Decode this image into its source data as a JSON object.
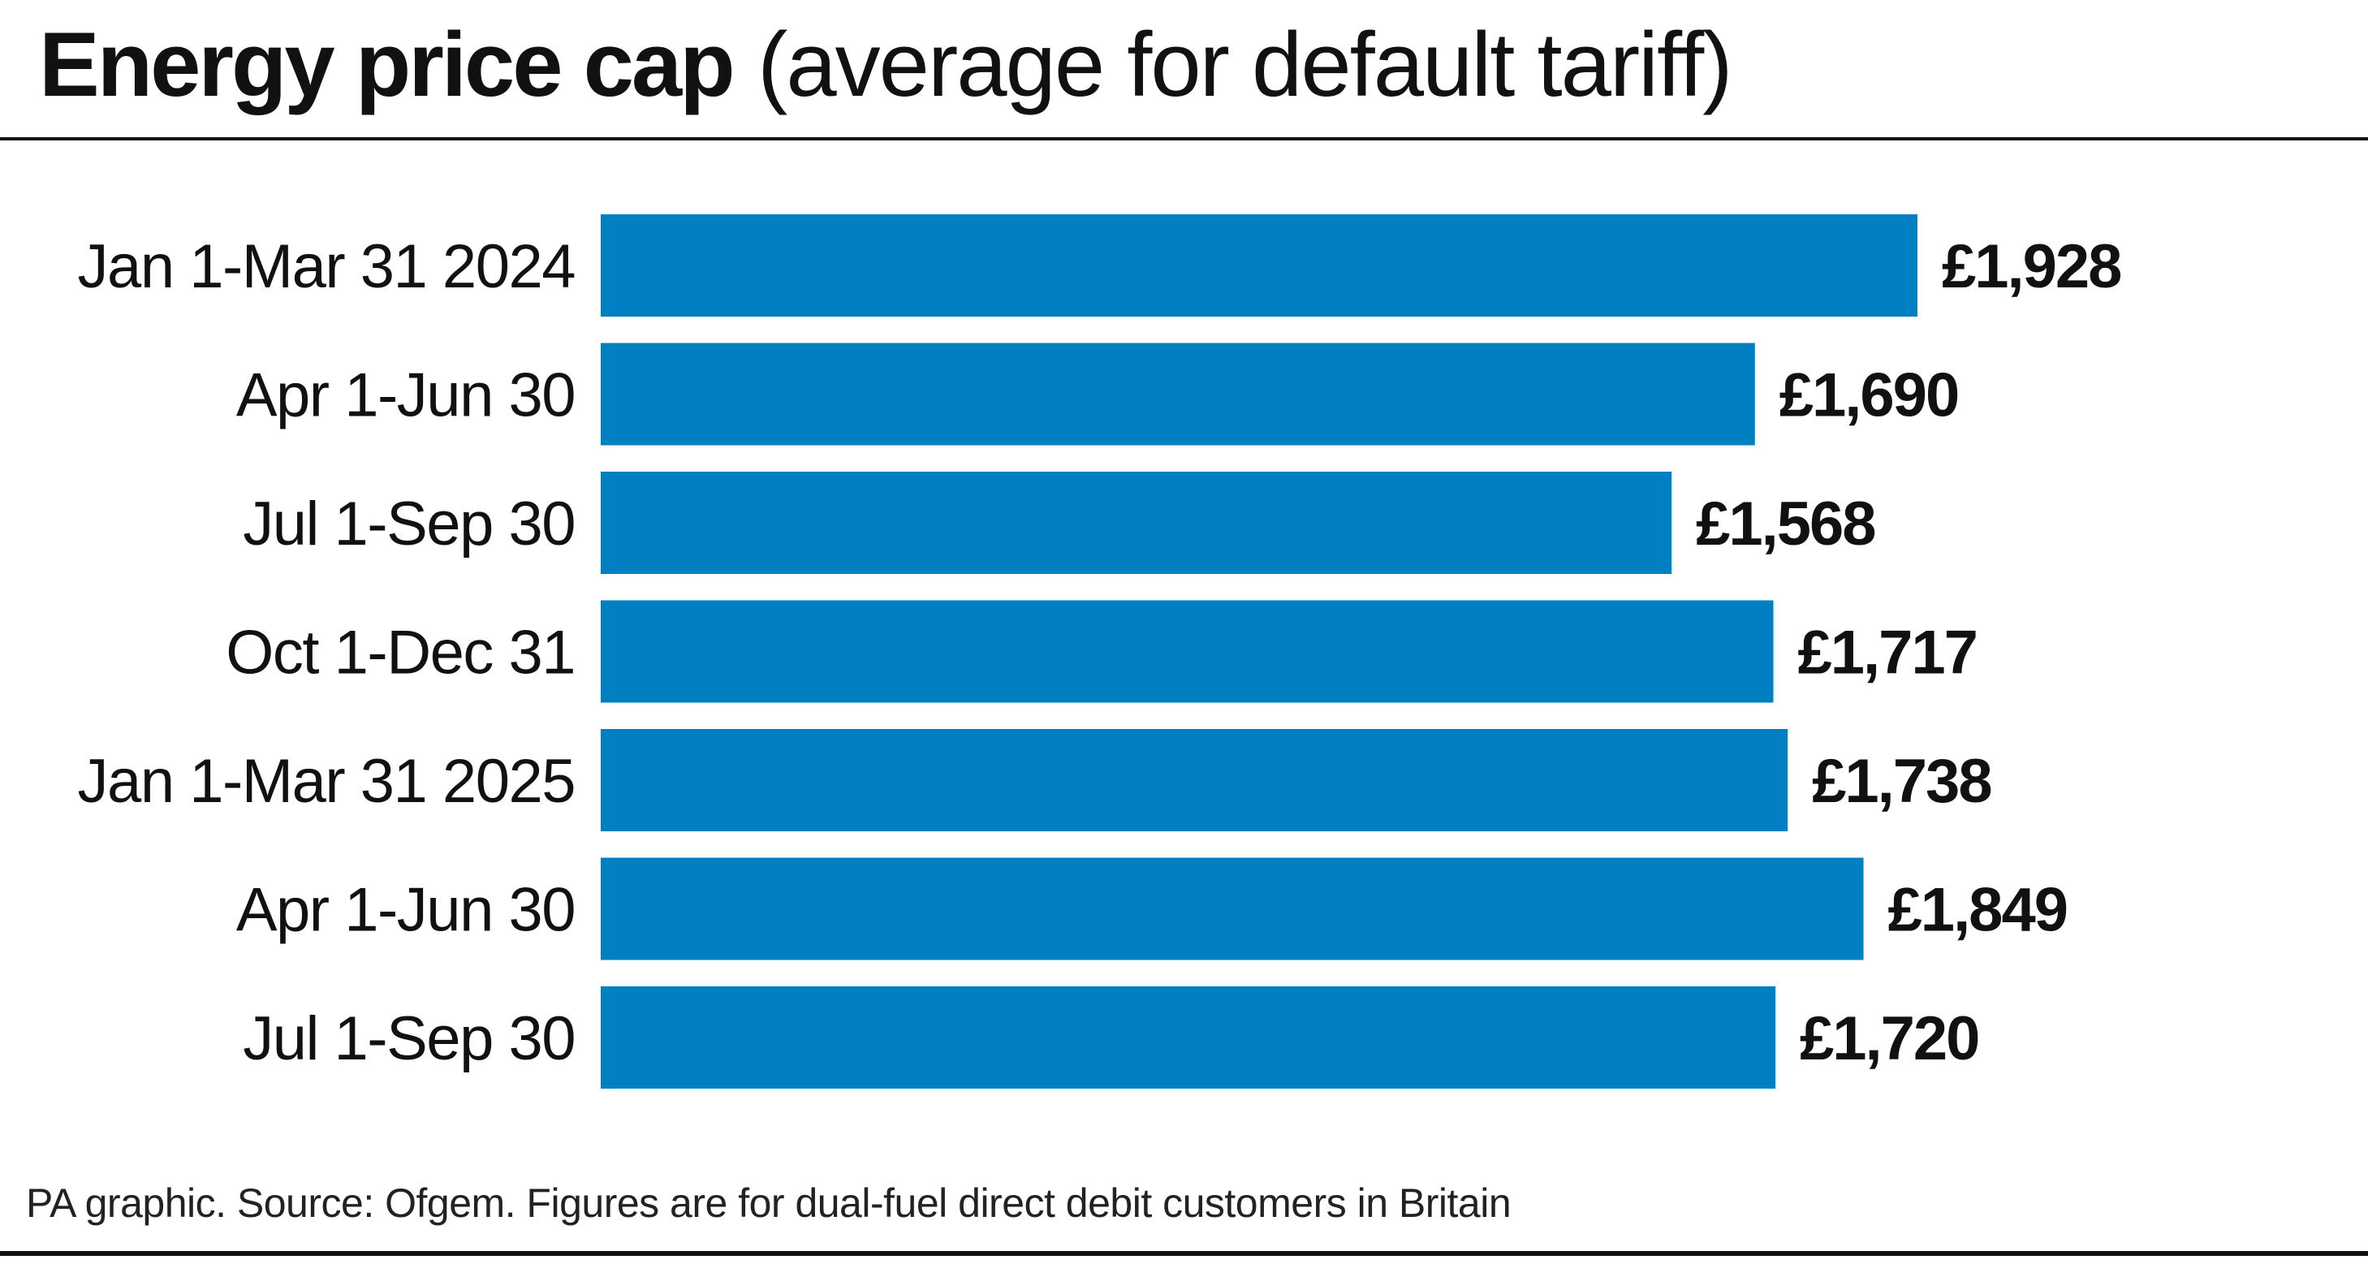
{
  "chart_data": {
    "type": "bar",
    "orientation": "horizontal",
    "title": "Energy price cap",
    "subtitle": "(average for default tariff)",
    "categories": [
      "Jan 1-Mar 31 2024",
      "Apr 1-Jun 30",
      "Jul 1-Sep 30",
      "Oct 1-Dec 31",
      "Jan 1-Mar 31 2025",
      "Apr 1-Jun 30",
      "Jul 1-Sep 30"
    ],
    "values": [
      1928,
      1690,
      1568,
      1717,
      1738,
      1849,
      1720
    ],
    "value_labels": [
      "£1,928",
      "£1,690",
      "£1,568",
      "£1,717",
      "£1,738",
      "£1,849",
      "£1,720"
    ],
    "unit": "£",
    "xlim": [
      0,
      1928
    ],
    "grid": false,
    "legend": "none",
    "bar_color": "#0080c2"
  },
  "footer": {
    "source": "PA graphic. Source: Ofgem. Figures are for dual-fuel direct debit customers in Britain"
  }
}
